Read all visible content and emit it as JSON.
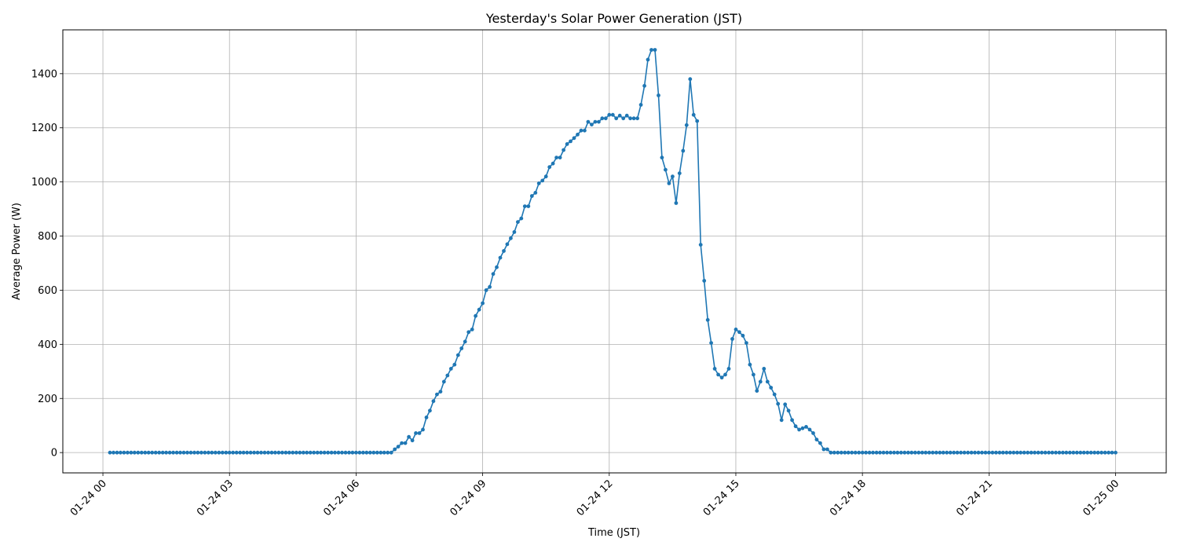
{
  "chart_data": {
    "type": "line",
    "title": "Yesterday's Solar Power Generation (JST)",
    "xlabel": "Time (JST)",
    "ylabel": "Average Power (W)",
    "x_start": "01-24 00:10",
    "x_step_minutes": 5,
    "x_tick_labels": [
      "01-24 00",
      "01-24 03",
      "01-24 06",
      "01-24 09",
      "01-24 12",
      "01-24 15",
      "01-24 18",
      "01-24 21",
      "01-25 00"
    ],
    "y_ticks": [
      0,
      200,
      400,
      600,
      800,
      1000,
      1200,
      1400
    ],
    "ylim": [
      -75,
      1562
    ],
    "xlim_hours": [
      -0.95,
      25.2
    ],
    "grid": true,
    "marker": "circle",
    "color": "#1f77b4",
    "series": [
      {
        "values": [
          0,
          0,
          0,
          0,
          0,
          0,
          0,
          0,
          0,
          0,
          0,
          0,
          0,
          0,
          0,
          0,
          0,
          0,
          0,
          0,
          0,
          0,
          0,
          0,
          0,
          0,
          0,
          0,
          0,
          0,
          0,
          0,
          0,
          0,
          0,
          0,
          0,
          0,
          0,
          0,
          0,
          0,
          0,
          0,
          0,
          0,
          0,
          0,
          0,
          0,
          0,
          0,
          0,
          0,
          0,
          0,
          0,
          0,
          0,
          0,
          0,
          0,
          0,
          0,
          0,
          0,
          0,
          0,
          0,
          0,
          0,
          0,
          0,
          0,
          0,
          0,
          0,
          0,
          0,
          0,
          0,
          12,
          22,
          35,
          35,
          58,
          45,
          72,
          72,
          85,
          130,
          155,
          190,
          215,
          225,
          262,
          285,
          310,
          325,
          360,
          385,
          410,
          445,
          455,
          505,
          528,
          552,
          600,
          612,
          660,
          685,
          720,
          745,
          770,
          792,
          815,
          852,
          865,
          910,
          910,
          948,
          960,
          995,
          1005,
          1020,
          1055,
          1068,
          1090,
          1090,
          1118,
          1140,
          1150,
          1162,
          1175,
          1190,
          1190,
          1222,
          1212,
          1222,
          1222,
          1235,
          1235,
          1248,
          1248,
          1235,
          1245,
          1235,
          1245,
          1235,
          1235,
          1235,
          1285,
          1355,
          1452,
          1488,
          1488,
          1320,
          1090,
          1045,
          995,
          1020,
          922,
          1032,
          1115,
          1210,
          1380,
          1248,
          1225,
          768,
          635,
          490,
          405,
          310,
          288,
          277,
          288,
          310,
          420,
          455,
          445,
          432,
          405,
          325,
          288,
          228,
          262,
          310,
          262,
          240,
          215,
          180,
          120,
          178,
          155,
          120,
          97,
          85,
          90,
          95,
          85,
          72,
          48,
          35,
          12,
          12,
          0,
          0,
          0,
          0,
          0,
          0,
          0,
          0,
          0,
          0,
          0,
          0,
          0,
          0,
          0,
          0,
          0,
          0,
          0,
          0,
          0,
          0,
          0,
          0,
          0,
          0,
          0,
          0,
          0,
          0,
          0,
          0,
          0,
          0,
          0,
          0,
          0,
          0,
          0,
          0,
          0,
          0,
          0,
          0,
          0,
          0,
          0,
          0,
          0,
          0,
          0,
          0,
          0,
          0,
          0,
          0,
          0,
          0,
          0,
          0,
          0,
          0,
          0,
          0,
          0,
          0,
          0,
          0,
          0,
          0,
          0,
          0,
          0,
          0,
          0,
          0,
          0,
          0,
          0,
          0,
          0,
          0
        ]
      }
    ]
  }
}
